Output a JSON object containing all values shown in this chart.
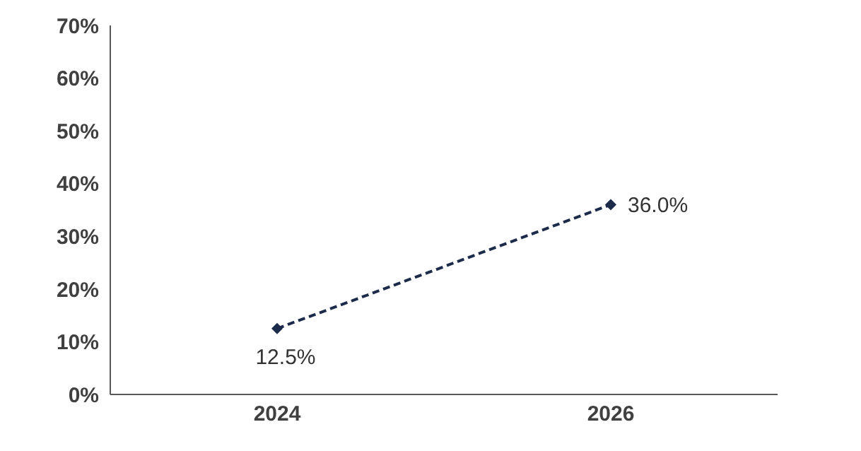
{
  "chart_data": {
    "type": "line",
    "categories": [
      "2024",
      "2026"
    ],
    "series": [
      {
        "color": "#1c2b4a",
        "values": [
          12.5,
          36.0
        ],
        "value_labels": [
          "12.5%",
          "36.0%"
        ]
      }
    ],
    "ylim": [
      0,
      70
    ],
    "yticks": [
      {
        "value": 0,
        "label": "0%"
      },
      {
        "value": 10,
        "label": "10%"
      },
      {
        "value": 20,
        "label": "20%"
      },
      {
        "value": 30,
        "label": "30%"
      },
      {
        "value": 40,
        "label": "40%"
      },
      {
        "value": 50,
        "label": "50%"
      },
      {
        "value": 60,
        "label": "60%"
      },
      {
        "value": 70,
        "label": "70%"
      }
    ],
    "grid": false,
    "legend": false,
    "marker": "diamond",
    "line_style": "dashed"
  }
}
